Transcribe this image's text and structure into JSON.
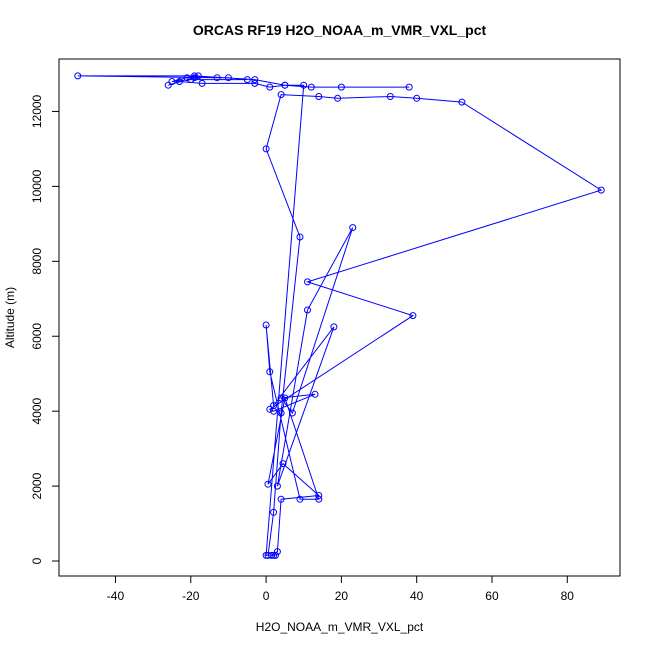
{
  "chart_data": {
    "type": "line",
    "title": "ORCAS RF19 H2O_NOAA_m_VMR_VXL_pct",
    "xlabel": "H2O_NOAA_m_VMR_VXL_pct",
    "ylabel": "Altitude (m)",
    "xlim": [
      -55,
      94
    ],
    "ylim": [
      -400,
      13400
    ],
    "xticks": [
      -40,
      -20,
      0,
      20,
      40,
      60,
      80
    ],
    "yticks": [
      0,
      2000,
      4000,
      6000,
      8000,
      10000,
      12000
    ],
    "grid": false,
    "legend": "none",
    "markers": "open-circle",
    "color": "#0000ff",
    "series": [
      {
        "x": [
          2,
          2.5,
          1.5,
          3,
          4,
          14,
          4.5,
          0.5,
          5,
          14,
          9,
          1,
          0,
          2,
          18,
          3,
          11,
          23,
          7,
          4,
          13,
          2,
          1,
          39,
          11,
          89,
          52,
          40,
          33,
          19,
          14,
          4,
          0,
          9,
          4,
          2,
          0.5,
          0,
          10,
          5,
          1,
          -3,
          -17,
          -23,
          -26,
          -19,
          -18,
          -21,
          -25,
          -20,
          -5,
          -10,
          -13,
          -50,
          -19,
          -3,
          5,
          12,
          20,
          38
        ],
        "y": [
          150,
          150,
          150,
          250,
          1650,
          1750,
          2600,
          2050,
          4350,
          1650,
          1650,
          5050,
          6300,
          4150,
          6250,
          2000,
          6700,
          8900,
          3950,
          4350,
          4450,
          4000,
          4050,
          6550,
          7450,
          9900,
          12250,
          12350,
          12400,
          12350,
          12400,
          12450,
          11000,
          8650,
          3950,
          1300,
          150,
          150,
          12700,
          12700,
          12650,
          12750,
          12750,
          12800,
          12700,
          12900,
          12950,
          12900,
          12800,
          12850,
          12850,
          12900,
          12900,
          12950,
          12950,
          12850,
          12700,
          12650,
          12650,
          12650
        ]
      }
    ]
  }
}
